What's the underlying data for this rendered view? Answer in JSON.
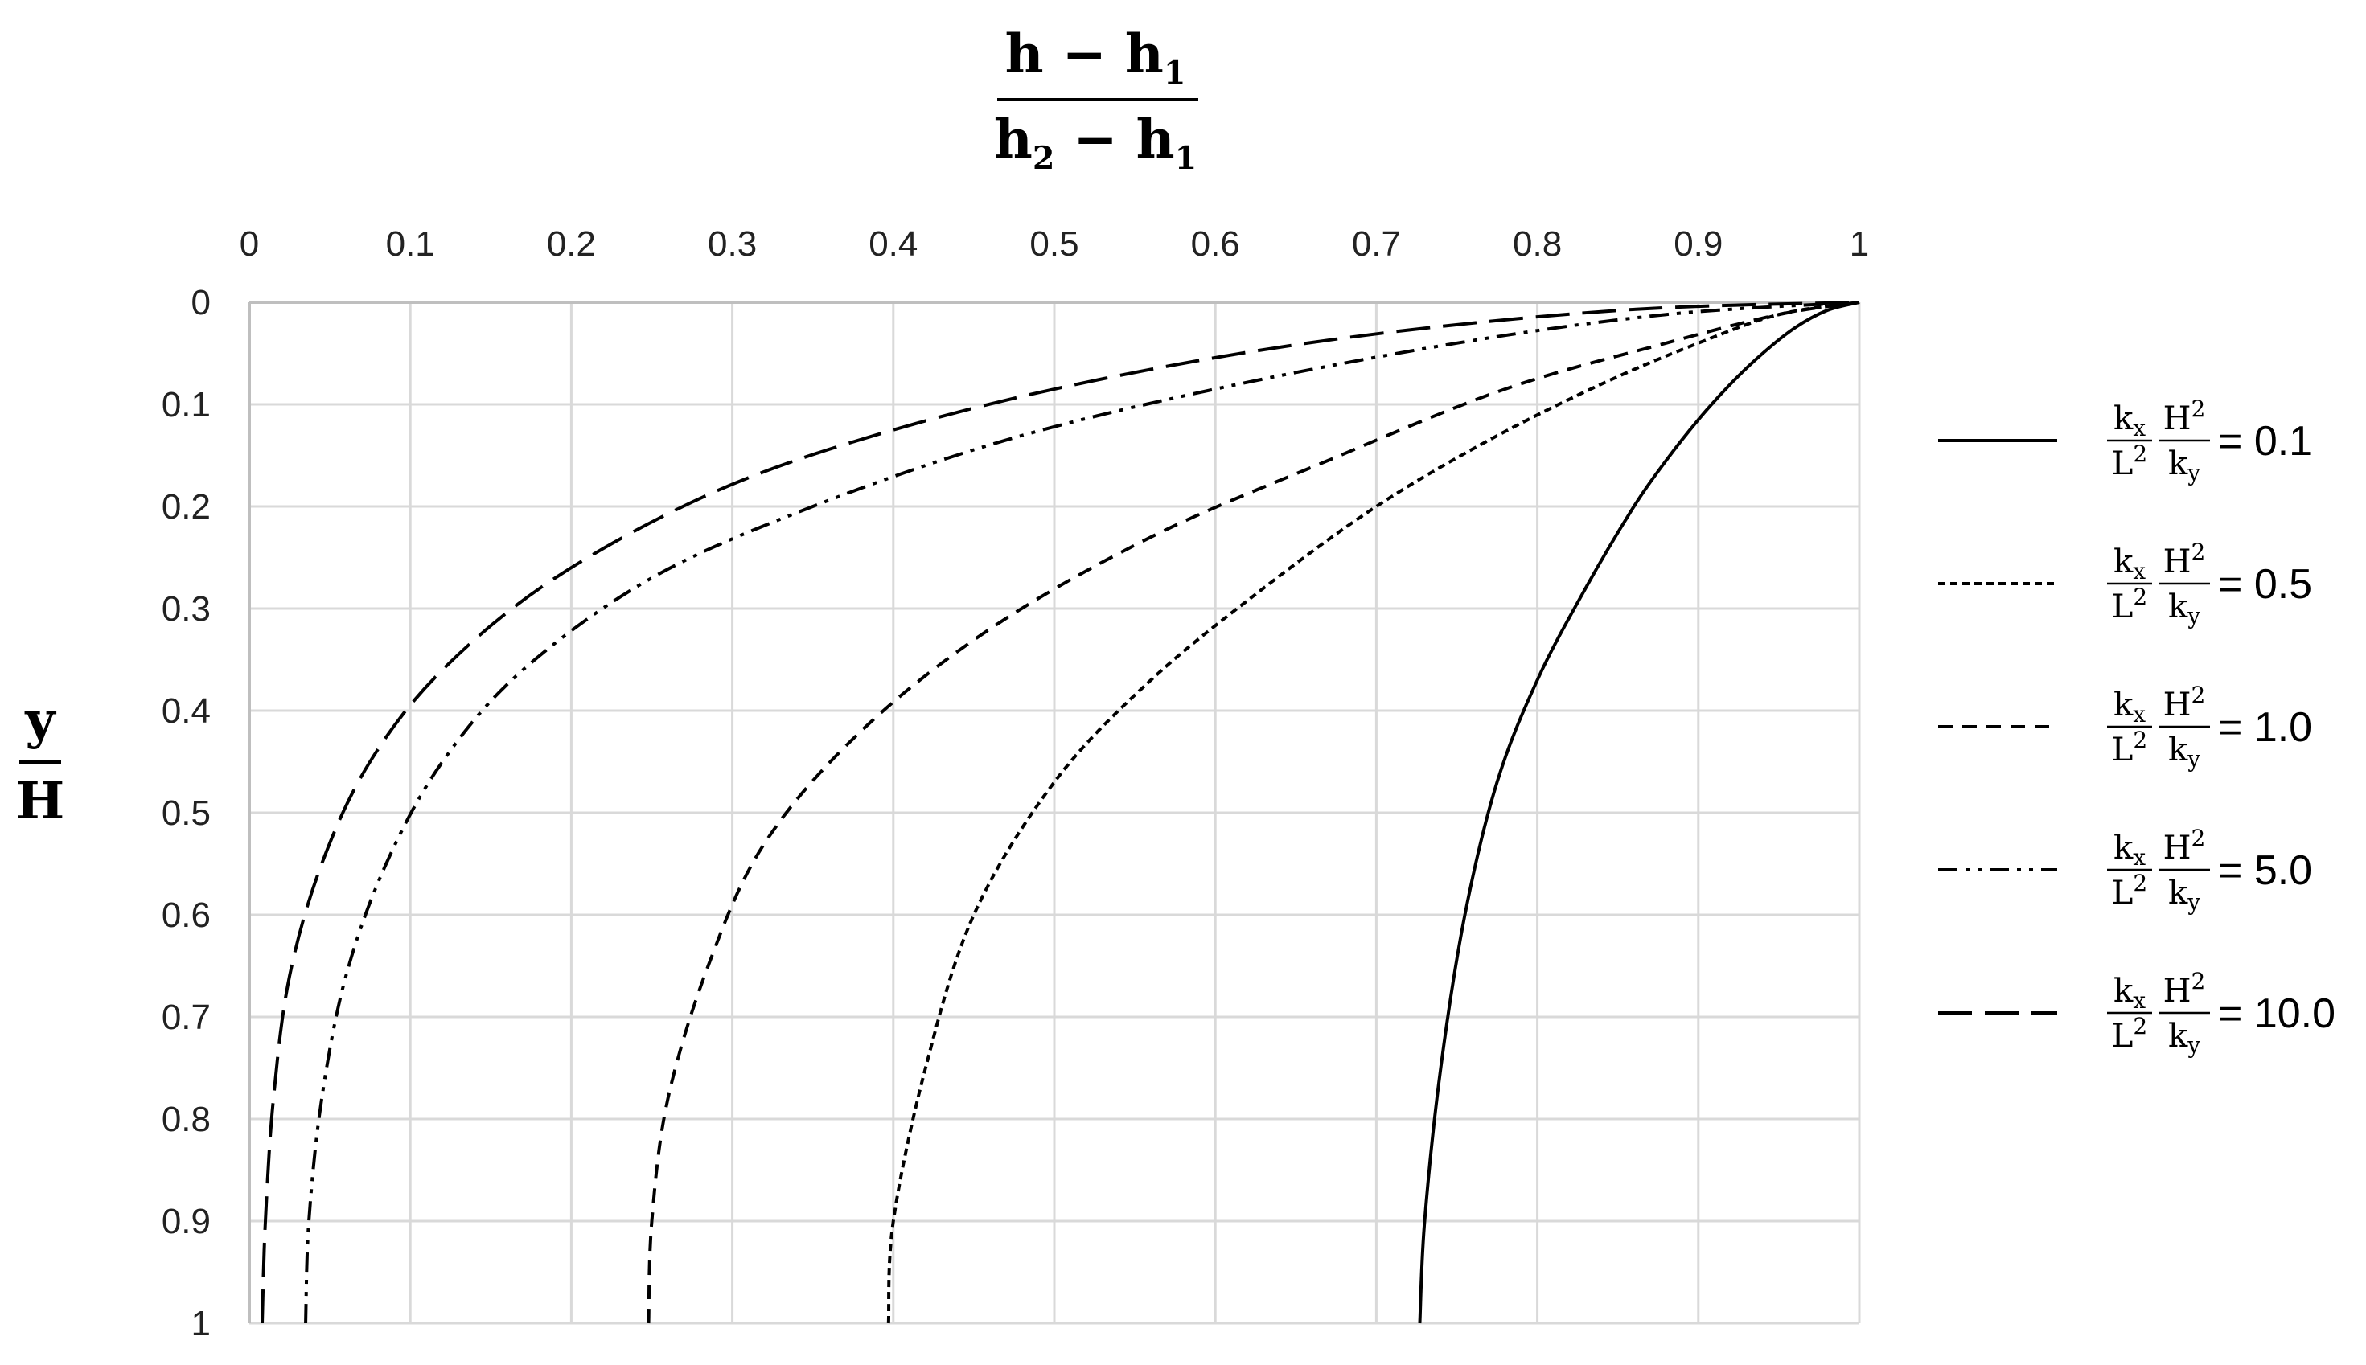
{
  "chart_data": {
    "type": "line",
    "xlabel": {
      "numerator": "h − h",
      "numerator_sub": "1",
      "denominator_a": "h",
      "denominator_a_sub": "2",
      "denominator_b": " − h",
      "denominator_b_sub": "1"
    },
    "ylabel": {
      "numerator": "y",
      "denominator": "H"
    },
    "xlim": [
      0,
      1
    ],
    "ylim": [
      0,
      1
    ],
    "y_inverted": true,
    "x_axis_position": "top",
    "grid": true,
    "legend_position": "right",
    "x_ticks": [
      "0",
      "0.1",
      "0.2",
      "0.3",
      "0.4",
      "0.5",
      "0.6",
      "0.7",
      "0.8",
      "0.9",
      "1"
    ],
    "y_ticks": [
      "0",
      "0.1",
      "0.2",
      "0.3",
      "0.4",
      "0.5",
      "0.6",
      "0.7",
      "0.8",
      "0.9",
      "1"
    ],
    "legend_term": {
      "kx": "k",
      "kx_sub": "x",
      "L2": "L",
      "L2_sup": "2",
      "H2": "H",
      "H2_sup": "2",
      "ky": "k",
      "ky_sub": "y"
    },
    "series": [
      {
        "name": "= 0.1",
        "style": "solid",
        "x": [
          0.727,
          0.73,
          0.74,
          0.755,
          0.775,
          0.8,
          0.83,
          0.86,
          0.88,
          0.9,
          0.92,
          0.94,
          0.96,
          0.98,
          1.0
        ],
        "y": [
          1.0,
          0.9,
          0.75,
          0.6,
          0.47,
          0.37,
          0.28,
          0.2,
          0.155,
          0.115,
          0.08,
          0.05,
          0.025,
          0.008,
          0.0
        ]
      },
      {
        "name": "= 0.5",
        "style": "dotted",
        "x": [
          0.397,
          0.4,
          0.42,
          0.45,
          0.5,
          0.56,
          0.63,
          0.7,
          0.77,
          0.84,
          0.9,
          0.95,
          1.0
        ],
        "y": [
          1.0,
          0.9,
          0.75,
          0.6,
          0.47,
          0.37,
          0.28,
          0.2,
          0.135,
          0.08,
          0.04,
          0.012,
          0.0
        ]
      },
      {
        "name": "= 1.0",
        "style": "short-dash",
        "x": [
          0.248,
          0.25,
          0.26,
          0.285,
          0.32,
          0.38,
          0.46,
          0.56,
          0.67,
          0.78,
          0.88,
          0.95,
          1.0
        ],
        "y": [
          1.0,
          0.9,
          0.78,
          0.65,
          0.53,
          0.42,
          0.32,
          0.23,
          0.155,
          0.085,
          0.04,
          0.012,
          0.0
        ]
      },
      {
        "name": "= 5.0",
        "style": "dash-dot-dot",
        "x": [
          0.035,
          0.037,
          0.045,
          0.06,
          0.085,
          0.12,
          0.17,
          0.25,
          0.35,
          0.47,
          0.6,
          0.75,
          0.88,
          1.0
        ],
        "y": [
          1.0,
          0.9,
          0.78,
          0.66,
          0.55,
          0.45,
          0.36,
          0.27,
          0.2,
          0.135,
          0.085,
          0.04,
          0.012,
          0.0
        ]
      },
      {
        "name": "= 10.0",
        "style": "long-dash",
        "x": [
          0.008,
          0.01,
          0.015,
          0.025,
          0.045,
          0.075,
          0.12,
          0.19,
          0.29,
          0.4,
          0.53,
          0.68,
          0.85,
          1.0
        ],
        "y": [
          1.0,
          0.9,
          0.78,
          0.66,
          0.55,
          0.45,
          0.36,
          0.27,
          0.185,
          0.125,
          0.075,
          0.035,
          0.008,
          0.0
        ]
      }
    ]
  }
}
